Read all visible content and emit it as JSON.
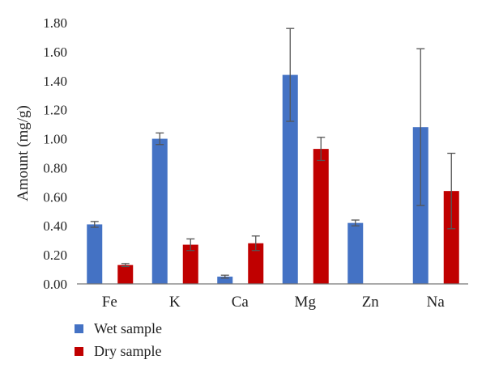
{
  "chart_data": {
    "type": "bar",
    "ylabel": "Amount (mg/g)",
    "xlabel": "",
    "ylim": [
      0,
      1.8
    ],
    "yticks": [
      "0.00",
      "0.20",
      "0.40",
      "0.60",
      "0.80",
      "1.00",
      "1.20",
      "1.40",
      "1.60",
      "1.80"
    ],
    "categories": [
      "Fe",
      "K",
      "Ca",
      "Mg",
      "Zn",
      "Na"
    ],
    "series": [
      {
        "name": "Wet sample",
        "color": "#4472C4",
        "values": [
          0.41,
          1.0,
          0.05,
          1.44,
          0.42,
          1.08
        ],
        "errors": [
          0.02,
          0.04,
          0.01,
          0.32,
          0.02,
          0.54
        ]
      },
      {
        "name": "Dry sample",
        "color": "#C00000",
        "values": [
          0.13,
          0.27,
          0.28,
          0.93,
          0.0,
          0.64
        ],
        "errors": [
          0.01,
          0.04,
          0.05,
          0.08,
          0.0,
          0.26
        ]
      }
    ],
    "grid": false,
    "legend_position": "bottom-left"
  }
}
